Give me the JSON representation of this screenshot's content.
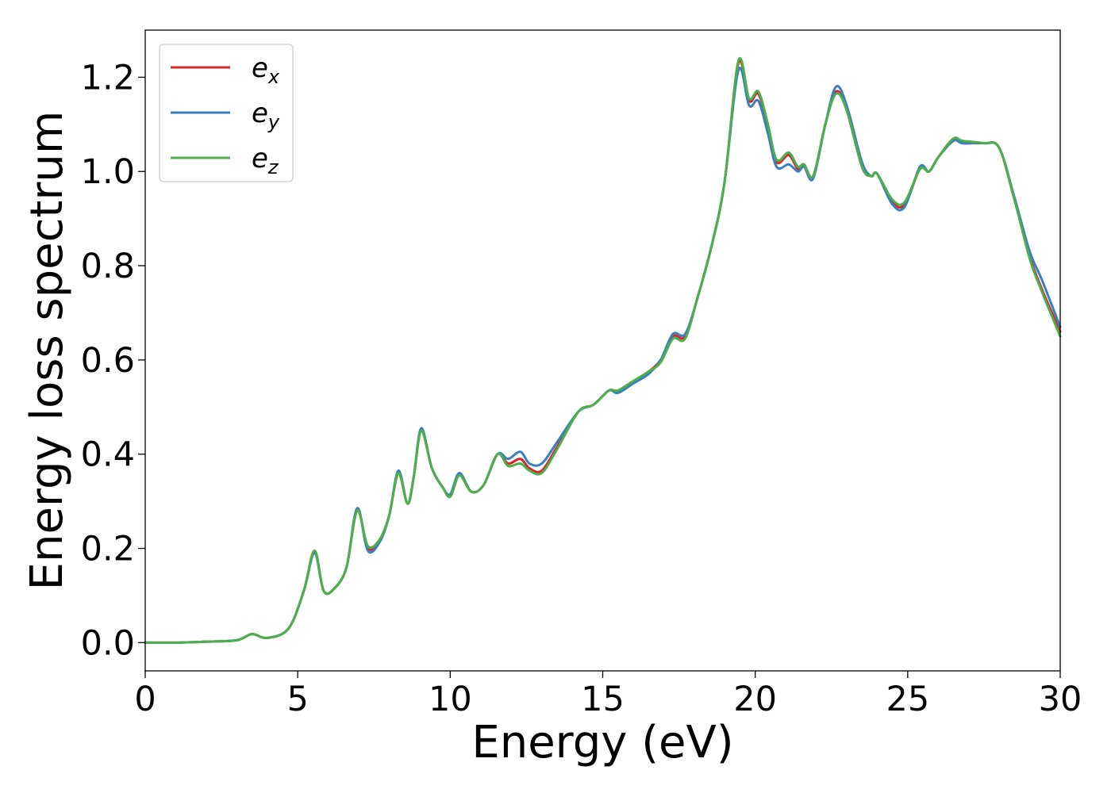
{
  "chart_data": {
    "type": "line",
    "xlabel": "Energy (eV)",
    "ylabel": "Energy loss spectrum",
    "xlim": [
      0,
      30
    ],
    "ylim": [
      -0.06,
      1.3
    ],
    "x_ticks": [
      "0",
      "5",
      "10",
      "15",
      "20",
      "25",
      "30"
    ],
    "y_ticks": [
      "0.0",
      "0.2",
      "0.4",
      "0.6",
      "0.8",
      "1.0",
      "1.2"
    ],
    "grid": false,
    "legend_position": "top-left",
    "series": [
      {
        "name": "e",
        "subscript": "x",
        "color": "#d62728",
        "points": [
          [
            0,
            0.0
          ],
          [
            1,
            0.0
          ],
          [
            2,
            0.002
          ],
          [
            3,
            0.005
          ],
          [
            3.5,
            0.018
          ],
          [
            4,
            0.01
          ],
          [
            4.7,
            0.03
          ],
          [
            5.2,
            0.11
          ],
          [
            5.55,
            0.195
          ],
          [
            5.85,
            0.11
          ],
          [
            6.2,
            0.115
          ],
          [
            6.6,
            0.16
          ],
          [
            6.95,
            0.285
          ],
          [
            7.3,
            0.2
          ],
          [
            7.7,
            0.22
          ],
          [
            8.0,
            0.27
          ],
          [
            8.3,
            0.36
          ],
          [
            8.6,
            0.295
          ],
          [
            8.8,
            0.35
          ],
          [
            9.05,
            0.45
          ],
          [
            9.4,
            0.37
          ],
          [
            9.75,
            0.33
          ],
          [
            10.0,
            0.31
          ],
          [
            10.3,
            0.355
          ],
          [
            10.7,
            0.32
          ],
          [
            11.1,
            0.335
          ],
          [
            11.55,
            0.4
          ],
          [
            11.9,
            0.38
          ],
          [
            12.3,
            0.39
          ],
          [
            12.6,
            0.37
          ],
          [
            13.0,
            0.365
          ],
          [
            13.5,
            0.415
          ],
          [
            14.2,
            0.49
          ],
          [
            14.7,
            0.505
          ],
          [
            15.2,
            0.535
          ],
          [
            15.5,
            0.535
          ],
          [
            16.0,
            0.555
          ],
          [
            16.5,
            0.575
          ],
          [
            16.9,
            0.6
          ],
          [
            17.3,
            0.65
          ],
          [
            17.7,
            0.65
          ],
          [
            18.1,
            0.73
          ],
          [
            18.6,
            0.85
          ],
          [
            19.0,
            0.98
          ],
          [
            19.45,
            1.23
          ],
          [
            19.8,
            1.15
          ],
          [
            20.1,
            1.165
          ],
          [
            20.4,
            1.1
          ],
          [
            20.7,
            1.02
          ],
          [
            21.1,
            1.035
          ],
          [
            21.4,
            1.005
          ],
          [
            21.6,
            1.015
          ],
          [
            21.9,
            0.99
          ],
          [
            22.3,
            1.1
          ],
          [
            22.65,
            1.17
          ],
          [
            23.0,
            1.13
          ],
          [
            23.5,
            1.01
          ],
          [
            23.8,
            0.99
          ],
          [
            24.0,
            0.995
          ],
          [
            24.5,
            0.935
          ],
          [
            24.9,
            0.93
          ],
          [
            25.4,
            1.005
          ],
          [
            25.7,
            1.0
          ],
          [
            26.0,
            1.03
          ],
          [
            26.5,
            1.07
          ],
          [
            26.8,
            1.06
          ],
          [
            27.5,
            1.06
          ],
          [
            28.0,
            1.05
          ],
          [
            28.5,
            0.94
          ],
          [
            29.0,
            0.82
          ],
          [
            29.4,
            0.75
          ],
          [
            30.0,
            0.66
          ]
        ]
      },
      {
        "name": "e",
        "subscript": "y",
        "color": "#3a7fc1",
        "points": [
          [
            0,
            0.0
          ],
          [
            1,
            0.0
          ],
          [
            2,
            0.002
          ],
          [
            3,
            0.005
          ],
          [
            3.5,
            0.018
          ],
          [
            4,
            0.01
          ],
          [
            4.7,
            0.03
          ],
          [
            5.2,
            0.11
          ],
          [
            5.55,
            0.19
          ],
          [
            5.85,
            0.11
          ],
          [
            6.2,
            0.115
          ],
          [
            6.6,
            0.16
          ],
          [
            6.95,
            0.285
          ],
          [
            7.3,
            0.195
          ],
          [
            7.7,
            0.215
          ],
          [
            8.0,
            0.27
          ],
          [
            8.3,
            0.365
          ],
          [
            8.6,
            0.295
          ],
          [
            8.8,
            0.35
          ],
          [
            9.05,
            0.455
          ],
          [
            9.4,
            0.37
          ],
          [
            9.75,
            0.33
          ],
          [
            10.0,
            0.315
          ],
          [
            10.3,
            0.36
          ],
          [
            10.7,
            0.32
          ],
          [
            11.1,
            0.335
          ],
          [
            11.55,
            0.4
          ],
          [
            11.9,
            0.39
          ],
          [
            12.3,
            0.405
          ],
          [
            12.6,
            0.38
          ],
          [
            13.0,
            0.38
          ],
          [
            13.5,
            0.425
          ],
          [
            14.2,
            0.49
          ],
          [
            14.7,
            0.505
          ],
          [
            15.2,
            0.535
          ],
          [
            15.5,
            0.53
          ],
          [
            16.0,
            0.55
          ],
          [
            16.5,
            0.57
          ],
          [
            16.9,
            0.6
          ],
          [
            17.3,
            0.655
          ],
          [
            17.7,
            0.655
          ],
          [
            18.1,
            0.73
          ],
          [
            18.6,
            0.85
          ],
          [
            19.0,
            0.98
          ],
          [
            19.45,
            1.215
          ],
          [
            19.8,
            1.14
          ],
          [
            20.1,
            1.15
          ],
          [
            20.4,
            1.085
          ],
          [
            20.7,
            1.01
          ],
          [
            21.1,
            1.015
          ],
          [
            21.4,
            1.0
          ],
          [
            21.6,
            1.01
          ],
          [
            21.9,
            0.985
          ],
          [
            22.3,
            1.1
          ],
          [
            22.65,
            1.18
          ],
          [
            23.0,
            1.14
          ],
          [
            23.5,
            1.02
          ],
          [
            23.8,
            0.99
          ],
          [
            24.0,
            0.995
          ],
          [
            24.5,
            0.93
          ],
          [
            24.9,
            0.925
          ],
          [
            25.4,
            1.01
          ],
          [
            25.7,
            1.0
          ],
          [
            26.0,
            1.03
          ],
          [
            26.5,
            1.065
          ],
          [
            26.8,
            1.06
          ],
          [
            27.5,
            1.06
          ],
          [
            28.0,
            1.05
          ],
          [
            28.5,
            0.945
          ],
          [
            29.0,
            0.83
          ],
          [
            29.4,
            0.77
          ],
          [
            30.0,
            0.67
          ]
        ]
      },
      {
        "name": "e",
        "subscript": "z",
        "color": "#4daf4a",
        "points": [
          [
            0,
            0.0
          ],
          [
            1,
            0.0
          ],
          [
            2,
            0.002
          ],
          [
            3,
            0.005
          ],
          [
            3.5,
            0.018
          ],
          [
            4,
            0.01
          ],
          [
            4.7,
            0.03
          ],
          [
            5.2,
            0.11
          ],
          [
            5.55,
            0.195
          ],
          [
            5.85,
            0.11
          ],
          [
            6.2,
            0.115
          ],
          [
            6.6,
            0.16
          ],
          [
            6.95,
            0.28
          ],
          [
            7.3,
            0.205
          ],
          [
            7.7,
            0.22
          ],
          [
            8.0,
            0.27
          ],
          [
            8.3,
            0.36
          ],
          [
            8.6,
            0.295
          ],
          [
            8.8,
            0.35
          ],
          [
            9.05,
            0.45
          ],
          [
            9.4,
            0.37
          ],
          [
            9.75,
            0.33
          ],
          [
            10.0,
            0.31
          ],
          [
            10.3,
            0.355
          ],
          [
            10.7,
            0.32
          ],
          [
            11.1,
            0.335
          ],
          [
            11.55,
            0.4
          ],
          [
            11.9,
            0.375
          ],
          [
            12.3,
            0.38
          ],
          [
            12.6,
            0.365
          ],
          [
            13.0,
            0.36
          ],
          [
            13.5,
            0.41
          ],
          [
            14.2,
            0.49
          ],
          [
            14.7,
            0.505
          ],
          [
            15.2,
            0.535
          ],
          [
            15.5,
            0.535
          ],
          [
            16.0,
            0.555
          ],
          [
            16.5,
            0.575
          ],
          [
            16.9,
            0.595
          ],
          [
            17.3,
            0.645
          ],
          [
            17.7,
            0.645
          ],
          [
            18.1,
            0.73
          ],
          [
            18.6,
            0.85
          ],
          [
            19.0,
            0.98
          ],
          [
            19.45,
            1.235
          ],
          [
            19.8,
            1.155
          ],
          [
            20.1,
            1.17
          ],
          [
            20.4,
            1.105
          ],
          [
            20.7,
            1.025
          ],
          [
            21.1,
            1.04
          ],
          [
            21.4,
            1.01
          ],
          [
            21.6,
            1.015
          ],
          [
            21.9,
            0.99
          ],
          [
            22.3,
            1.1
          ],
          [
            22.65,
            1.165
          ],
          [
            23.0,
            1.13
          ],
          [
            23.5,
            1.01
          ],
          [
            23.8,
            0.99
          ],
          [
            24.0,
            0.995
          ],
          [
            24.5,
            0.94
          ],
          [
            24.9,
            0.935
          ],
          [
            25.4,
            1.005
          ],
          [
            25.7,
            1.0
          ],
          [
            26.0,
            1.03
          ],
          [
            26.5,
            1.07
          ],
          [
            26.8,
            1.065
          ],
          [
            27.5,
            1.06
          ],
          [
            28.0,
            1.05
          ],
          [
            28.5,
            0.94
          ],
          [
            29.0,
            0.815
          ],
          [
            29.4,
            0.745
          ],
          [
            30.0,
            0.65
          ]
        ]
      }
    ]
  }
}
